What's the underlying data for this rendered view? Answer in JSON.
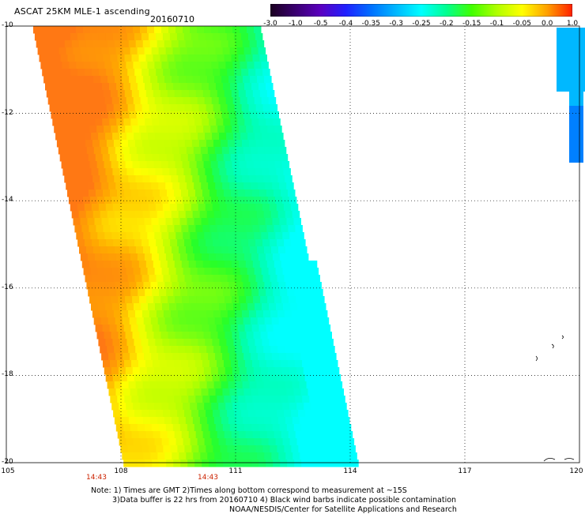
{
  "header": {
    "title": "ASCAT 25KM MLE-1 ascending",
    "date": "20160710"
  },
  "colorbar": {
    "labels": [
      "-3.0",
      "-1.0",
      "-0.5",
      "-0.4",
      "-0.35",
      "-0.3",
      "-0.25",
      "-0.2",
      "-0.15",
      "-0.1",
      "-0.05",
      "0.0",
      "1.0"
    ],
    "colors": [
      "#1a0020",
      "#3a0070",
      "#5a00c0",
      "#2020ff",
      "#0070ff",
      "#00b8ff",
      "#00ffff",
      "#00ff90",
      "#40ff00",
      "#b0ff00",
      "#ffff00",
      "#ffa000",
      "#ff2000"
    ]
  },
  "axes": {
    "lon_min": 105,
    "lon_max": 120,
    "lat_min": -20,
    "lat_max": -10,
    "lat_labels": [
      "-10",
      "-12",
      "-14",
      "-16",
      "-18",
      "-20"
    ],
    "lon_labels": [
      "105",
      "108",
      "111",
      "114",
      "117",
      "120"
    ]
  },
  "times": [
    "14:43",
    "14:43"
  ],
  "notes": {
    "line1": "Note: 1) Times are GMT 2)Times along bottom correspond to measurement at ~15S",
    "line2": "3)Data buffer is 22 hrs from 20160710 4) Black wind barbs indicate possible contamination",
    "line3": "NOAA/NESDIS/Center for Satellite Applications and Research"
  }
}
